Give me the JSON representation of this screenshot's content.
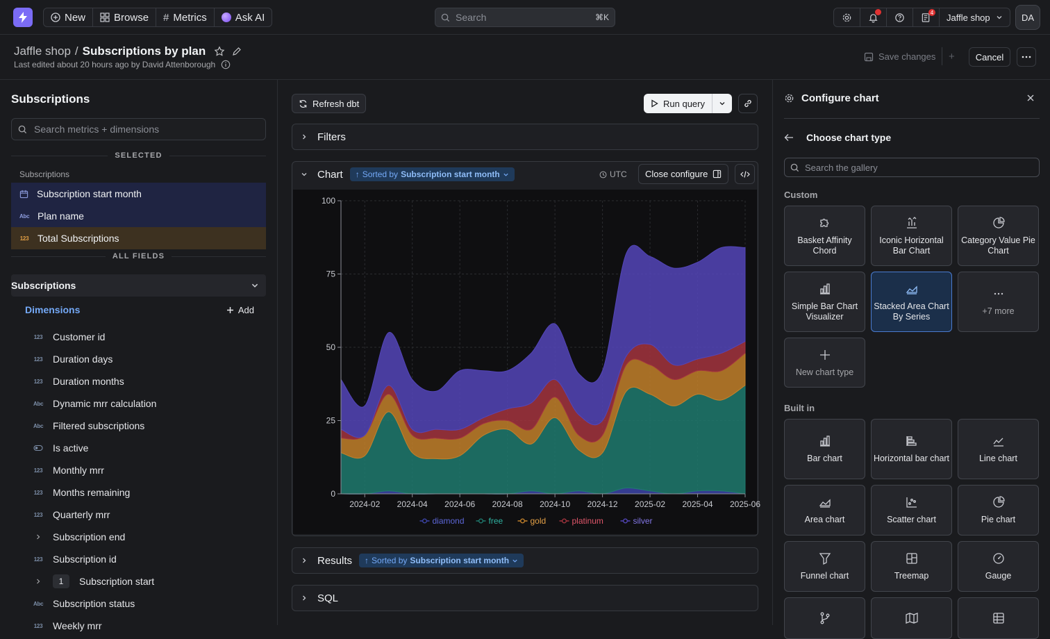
{
  "topbar": {
    "new_label": "New",
    "browse_label": "Browse",
    "metrics_label": "Metrics",
    "askai_label": "Ask AI",
    "search_placeholder": "Search",
    "search_shortcut": "⌘K",
    "notifications_badge": "4",
    "project_name": "Jaffle shop",
    "avatar_initials": "DA"
  },
  "header": {
    "breadcrumb_parent": "Jaffle shop",
    "separator": "/",
    "title": "Subscriptions by plan",
    "last_edited": "Last edited about 20 hours ago by David Attenborough",
    "save_label": "Save changes",
    "cancel_label": "Cancel"
  },
  "sidebar": {
    "title": "Subscriptions",
    "search_placeholder": "Search metrics + dimensions",
    "selected_label": "SELECTED",
    "selected_group": "Subscriptions",
    "selected_items": [
      {
        "label": "Subscription start month",
        "type": "date"
      },
      {
        "label": "Plan name",
        "type": "string"
      },
      {
        "label": "Total Subscriptions",
        "type": "metric"
      }
    ],
    "all_fields_label": "ALL FIELDS",
    "table_name": "Subscriptions",
    "dimensions_label": "Dimensions",
    "add_label": "Add",
    "fields": [
      {
        "label": "Customer id",
        "icon": "123"
      },
      {
        "label": "Duration days",
        "icon": "123"
      },
      {
        "label": "Duration months",
        "icon": "123"
      },
      {
        "label": "Dynamic mrr calculation",
        "icon": "Abc"
      },
      {
        "label": "Filtered subscriptions",
        "icon": "Abc"
      },
      {
        "label": "Is active",
        "icon": "toggle"
      },
      {
        "label": "Monthly mrr",
        "icon": "123"
      },
      {
        "label": "Months remaining",
        "icon": "123"
      },
      {
        "label": "Quarterly mrr",
        "icon": "123"
      },
      {
        "label": "Subscription end",
        "icon": "chevron"
      },
      {
        "label": "Subscription id",
        "icon": "123"
      },
      {
        "label": "Subscription start",
        "icon": "chevron",
        "count": "1"
      },
      {
        "label": "Subscription status",
        "icon": "Abc"
      },
      {
        "label": "Weekly mrr",
        "icon": "123"
      }
    ]
  },
  "explorer": {
    "refresh_label": "Refresh dbt",
    "run_label": "Run query",
    "filters_label": "Filters",
    "chart_label": "Chart",
    "sorted_prefix": "Sorted by",
    "sorted_field": "Subscription start month",
    "timezone": "UTC",
    "close_configure_label": "Close configure",
    "results_label": "Results",
    "sql_label": "SQL"
  },
  "chart_data": {
    "type": "area",
    "stacked": true,
    "x": [
      "2024-01",
      "2024-02",
      "2024-03",
      "2024-04",
      "2024-05",
      "2024-06",
      "2024-07",
      "2024-08",
      "2024-09",
      "2024-10",
      "2024-11",
      "2024-12",
      "2025-01",
      "2025-02",
      "2025-03",
      "2025-04",
      "2025-05",
      "2025-06"
    ],
    "x_ticks": [
      "2024-02",
      "2024-04",
      "2024-06",
      "2024-08",
      "2024-10",
      "2024-12",
      "2025-02",
      "2025-04",
      "2025-06"
    ],
    "ylim": [
      0,
      100
    ],
    "y_ticks": [
      0,
      25,
      50,
      75,
      100
    ],
    "grid": true,
    "legend_position": "bottom",
    "series": [
      {
        "name": "diamond",
        "color": "#3c44a8",
        "values": [
          0,
          0,
          1,
          0,
          0,
          0,
          0,
          0,
          1,
          0,
          1,
          0,
          2,
          1,
          0,
          1,
          1,
          0
        ]
      },
      {
        "name": "free",
        "color": "#1f7a6e",
        "values": [
          14,
          13,
          27,
          14,
          12,
          13,
          20,
          22,
          16,
          26,
          14,
          14,
          33,
          33,
          30,
          33,
          31,
          37
        ]
      },
      {
        "name": "gold",
        "color": "#c2802a",
        "values": [
          5,
          7,
          6,
          6,
          7,
          6,
          4,
          3,
          5,
          7,
          5,
          6,
          9,
          10,
          9,
          8,
          10,
          11
        ]
      },
      {
        "name": "platinum",
        "color": "#a3343e",
        "values": [
          3,
          0,
          3,
          2,
          3,
          3,
          2,
          4,
          9,
          6,
          7,
          5,
          3,
          7,
          5,
          4,
          6,
          4
        ]
      },
      {
        "name": "silver",
        "color": "#5345b8",
        "values": [
          17,
          10,
          18,
          17,
          13,
          20,
          16,
          13,
          17,
          19,
          14,
          17,
          35,
          30,
          33,
          33,
          36,
          32
        ]
      }
    ]
  },
  "configure": {
    "title": "Configure chart",
    "choose_title": "Choose chart type",
    "gallery_placeholder": "Search the gallery",
    "custom_label": "Custom",
    "custom_cards": [
      {
        "label": "Basket Affinity Chord",
        "icon": "puzzle"
      },
      {
        "label": "Iconic Horizontal Bar Chart",
        "icon": "bar-up"
      },
      {
        "label": "Category Value Pie Chart",
        "icon": "pie"
      },
      {
        "label": "Simple Bar Chart Visualizer",
        "icon": "bar"
      },
      {
        "label": "Stacked Area Chart By Series",
        "icon": "area",
        "selected": true
      },
      {
        "label": "+7 more",
        "icon": "dots"
      },
      {
        "label": "New chart type",
        "icon": "plus"
      }
    ],
    "builtin_label": "Built in",
    "builtin_cards": [
      {
        "label": "Bar chart",
        "icon": "bar"
      },
      {
        "label": "Horizontal bar chart",
        "icon": "hbar"
      },
      {
        "label": "Line chart",
        "icon": "line"
      },
      {
        "label": "Area chart",
        "icon": "area"
      },
      {
        "label": "Scatter chart",
        "icon": "scatter"
      },
      {
        "label": "Pie chart",
        "icon": "pie"
      },
      {
        "label": "Funnel chart",
        "icon": "funnel"
      },
      {
        "label": "Treemap",
        "icon": "treemap"
      },
      {
        "label": "Gauge",
        "icon": "gauge"
      },
      {
        "label": "",
        "icon": "git"
      },
      {
        "label": "",
        "icon": "map"
      },
      {
        "label": "",
        "icon": "table"
      }
    ]
  }
}
